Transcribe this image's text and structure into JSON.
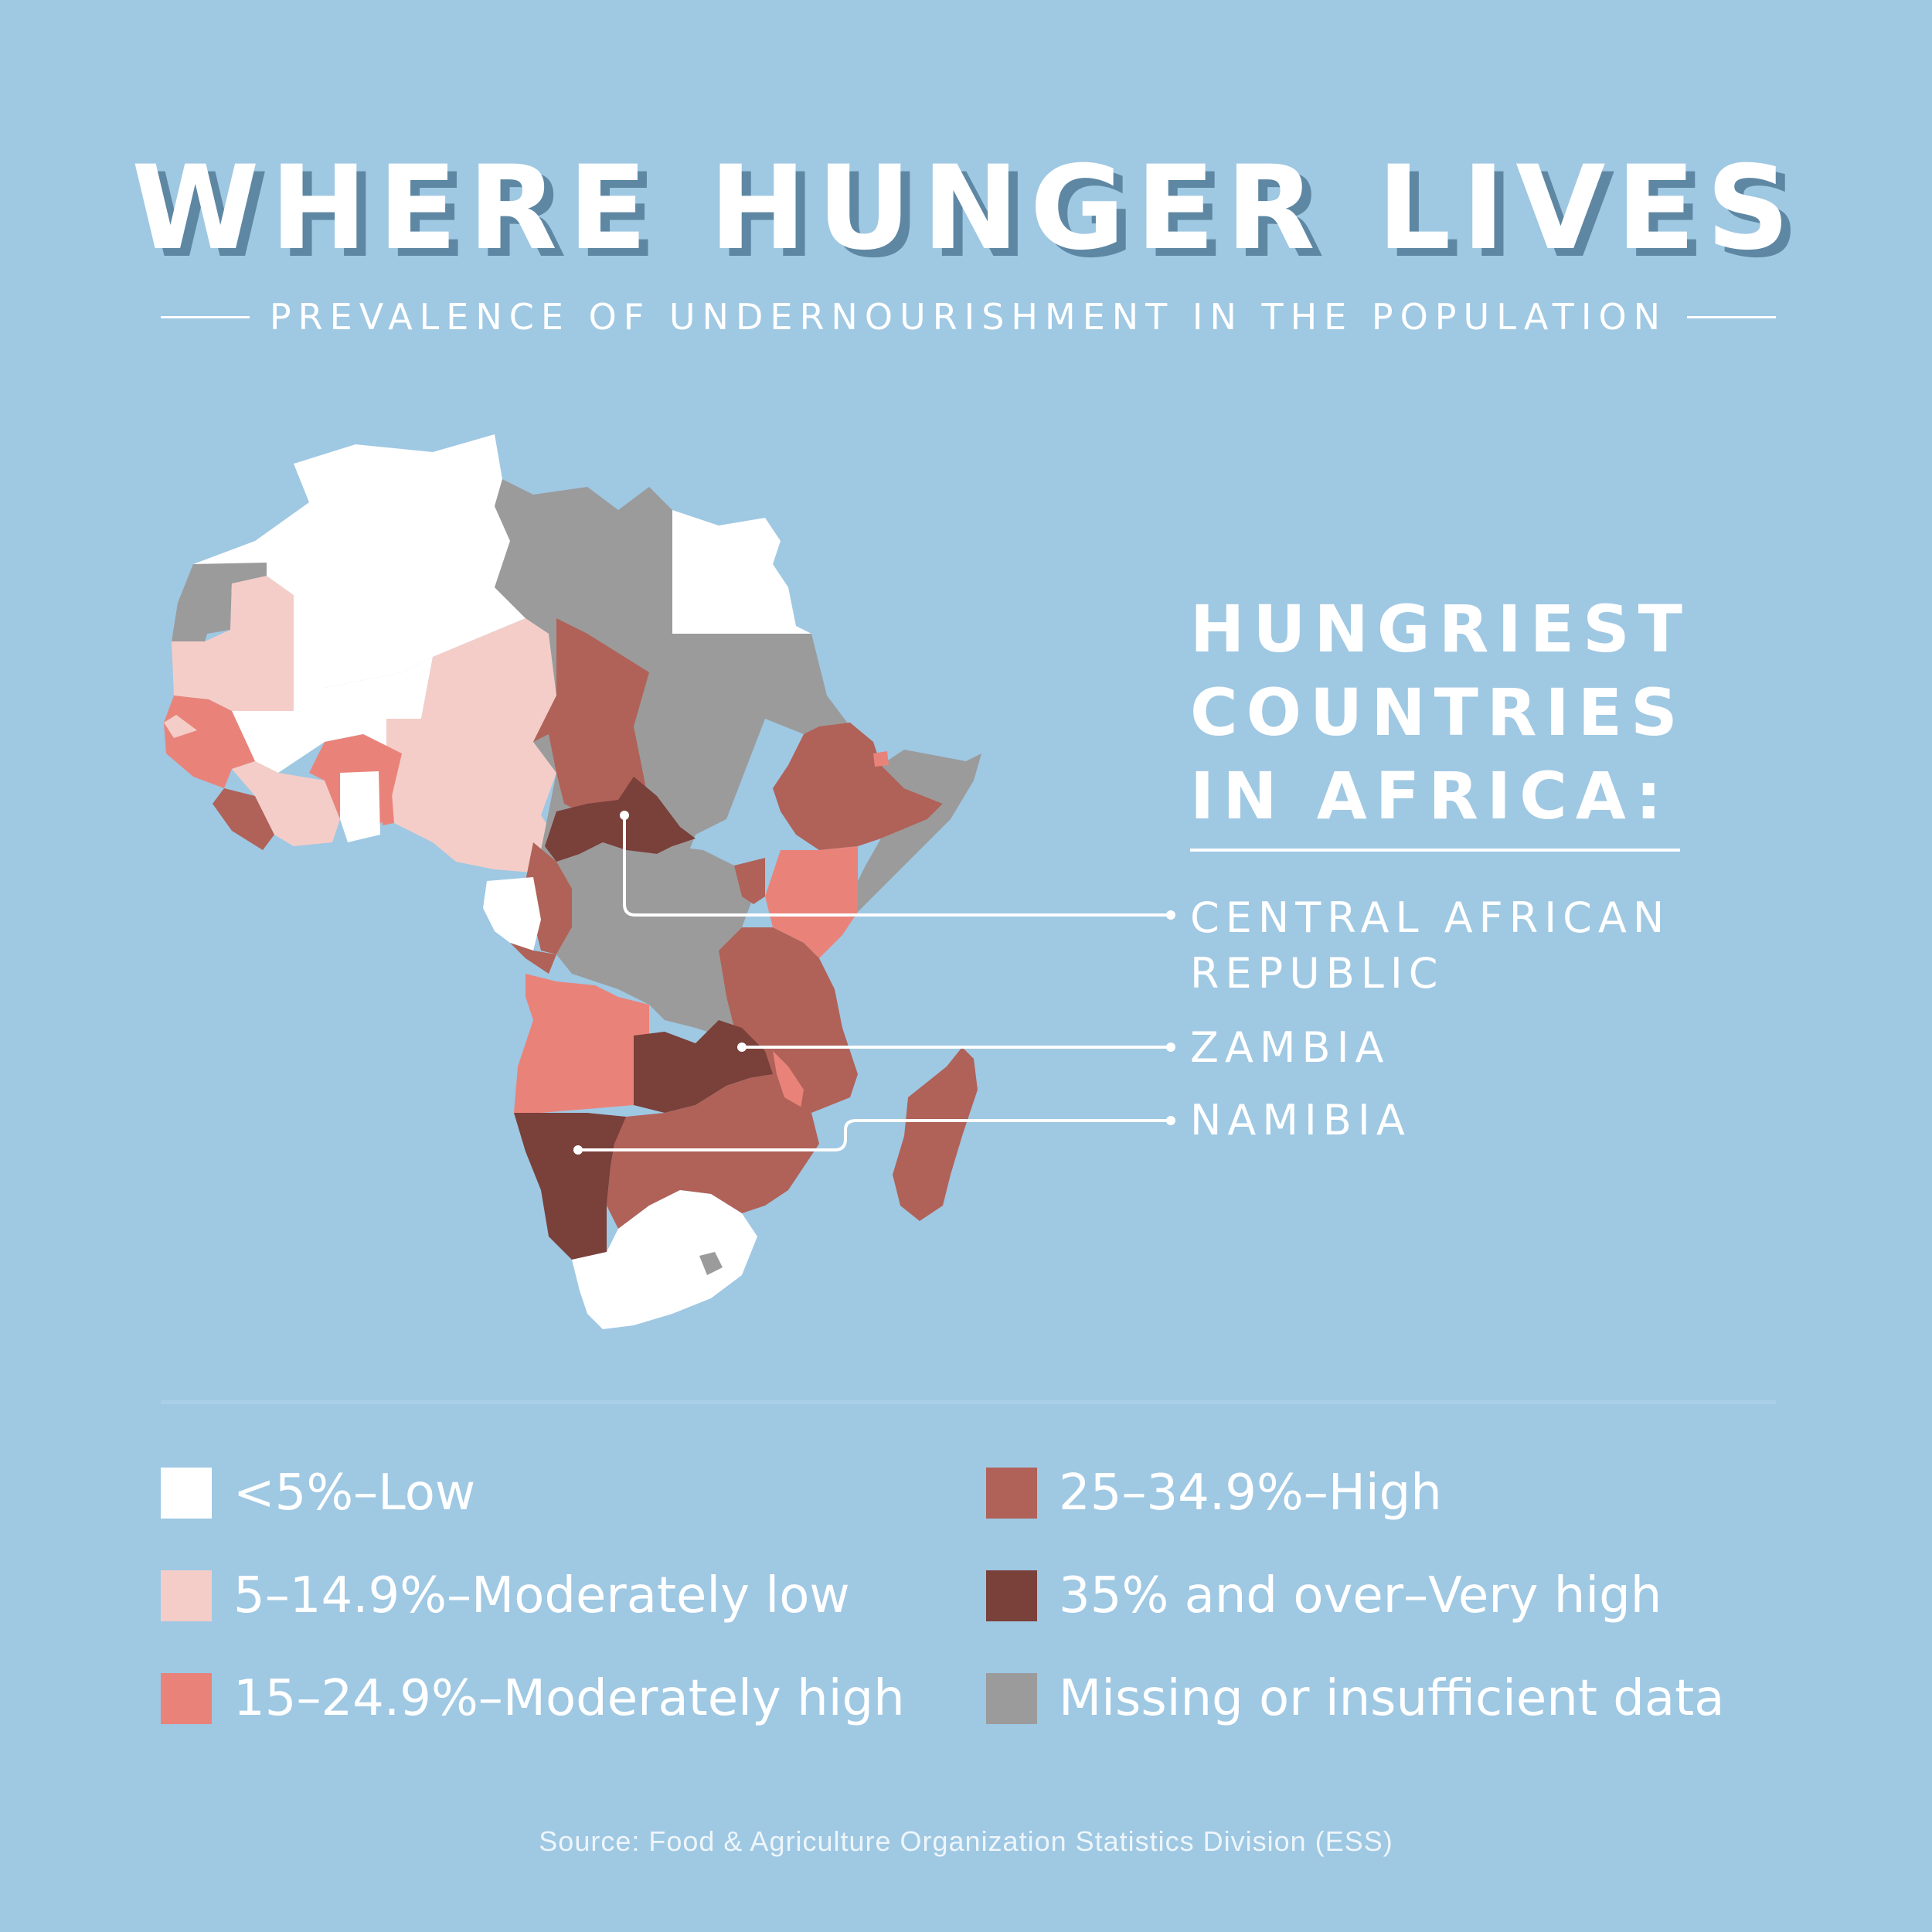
{
  "title": "WHERE HUNGER LIVES",
  "subtitle": "PREVALENCE OF UNDERNOURISHMENT IN THE POPULATION",
  "hungriest_heading": [
    "HUNGRIEST",
    "COUNTRIES",
    "IN AFRICA:"
  ],
  "hungriest_countries": [
    {
      "lines": [
        "CENTRAL AFRICAN",
        "REPUBLIC"
      ]
    },
    {
      "lines": [
        "ZAMBIA"
      ]
    },
    {
      "lines": [
        "NAMIBIA"
      ]
    }
  ],
  "legend": [
    {
      "label": "<5%–Low",
      "color": "#ffffff"
    },
    {
      "label": "5–14.9%–Moderately low",
      "color": "#f5cdc8"
    },
    {
      "label": "15–24.9%–Moderately high",
      "color": "#e9837a"
    },
    {
      "label": "25–34.9%–High",
      "color": "#b06258"
    },
    {
      "label": "35% and over–Very high",
      "color": "#7a403a"
    },
    {
      "label": "Missing or insufficient data",
      "color": "#9b9b9b"
    }
  ],
  "source": "Source: Food & Agriculture Organization Statistics Division (ESS)",
  "colors": {
    "background": "#9fc8e3",
    "title_shadow": "#5e87a3",
    "low": "#ffffff",
    "moderately_low": "#f5cdc8",
    "moderately_high": "#e9837a",
    "high": "#b06258",
    "very_high": "#7a403a",
    "missing": "#9b9b9b"
  }
}
